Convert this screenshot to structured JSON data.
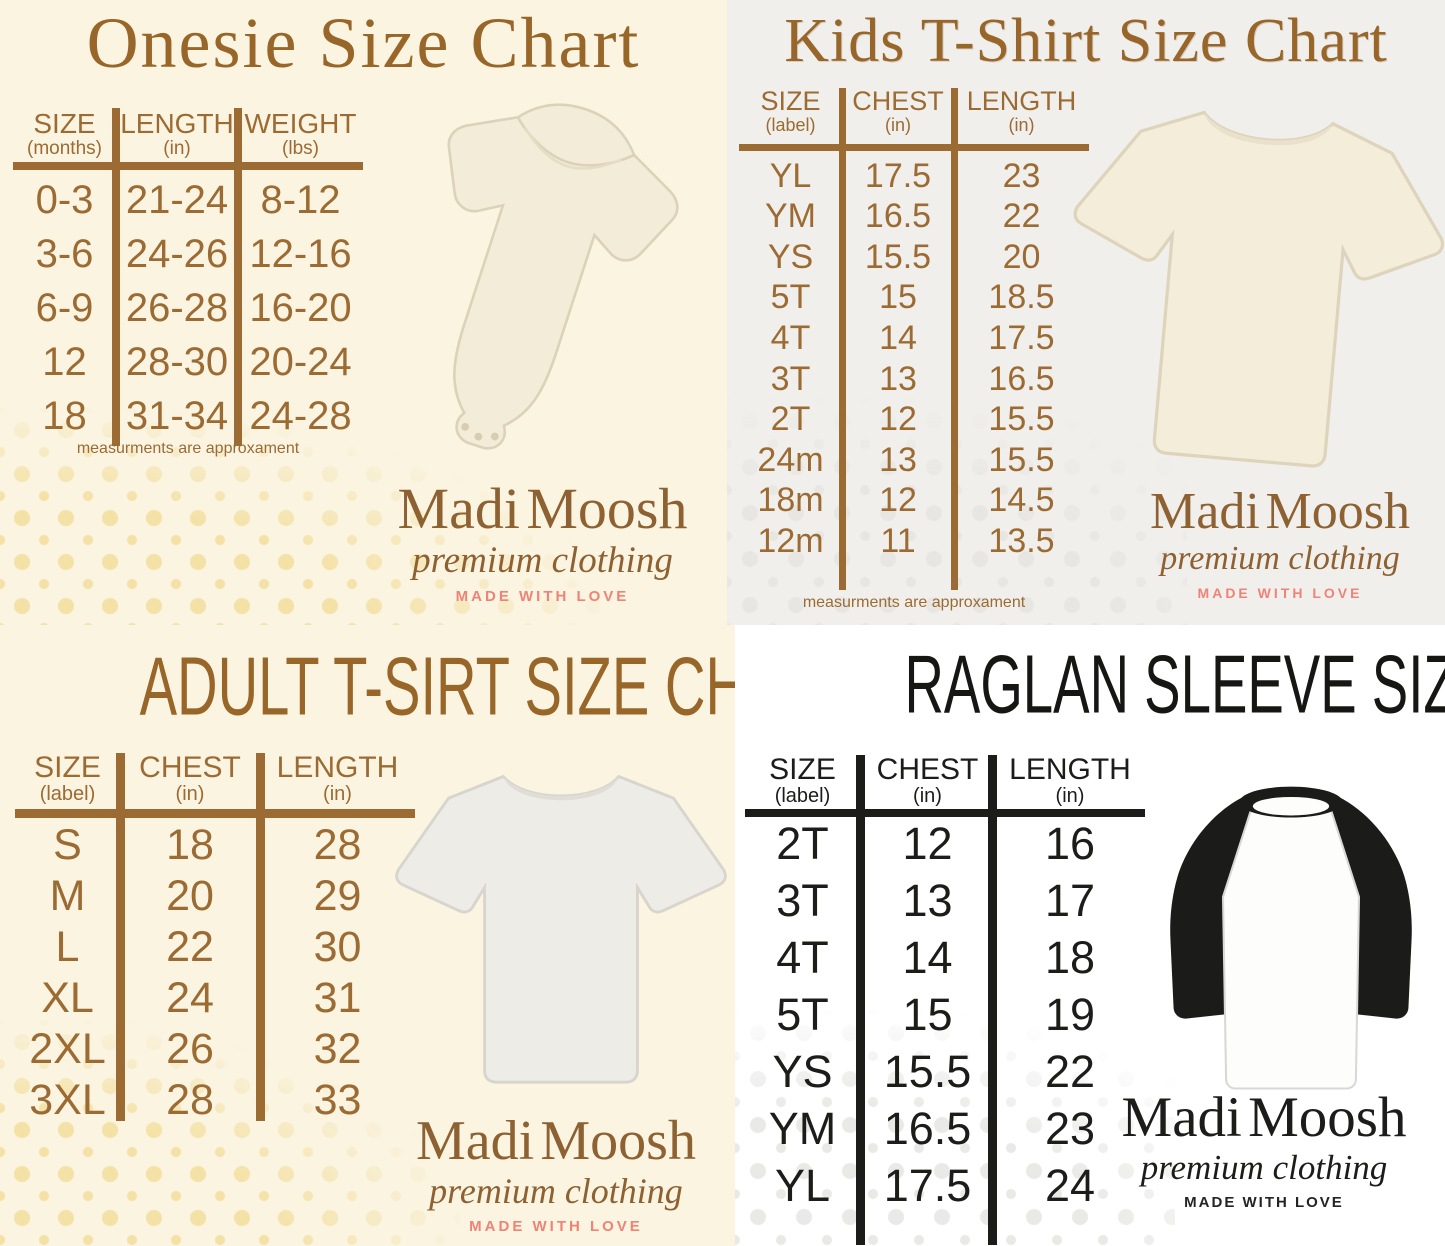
{
  "brand": {
    "name": "Madi Moosh",
    "tagline": "premium clothing",
    "motto": "MADE WITH LOVE"
  },
  "charts": {
    "onesie": {
      "title": "Onesie Size Chart",
      "note": "measurments are approxament",
      "columns": [
        {
          "label": "SIZE",
          "unit": "(months)"
        },
        {
          "label": "LENGTH",
          "unit": "(in)"
        },
        {
          "label": "WEIGHT",
          "unit": "(lbs)"
        }
      ],
      "rows": [
        [
          "0-3",
          "21-24",
          "8-12"
        ],
        [
          "3-6",
          "24-26",
          "12-16"
        ],
        [
          "6-9",
          "26-28",
          "16-20"
        ],
        [
          "12",
          "28-30",
          "20-24"
        ],
        [
          "18",
          "31-34",
          "24-28"
        ]
      ]
    },
    "kids": {
      "title": "Kids T-Shirt Size Chart",
      "note": "measurments are approxament",
      "columns": [
        {
          "label": "SIZE",
          "unit": "(label)"
        },
        {
          "label": "CHEST",
          "unit": "(in)"
        },
        {
          "label": "LENGTH",
          "unit": "(in)"
        }
      ],
      "rows": [
        [
          "YL",
          "17.5",
          "23"
        ],
        [
          "YM",
          "16.5",
          "22"
        ],
        [
          "YS",
          "15.5",
          "20"
        ],
        [
          "5T",
          "15",
          "18.5"
        ],
        [
          "4T",
          "14",
          "17.5"
        ],
        [
          "3T",
          "13",
          "16.5"
        ],
        [
          "2T",
          "12",
          "15.5"
        ],
        [
          "24m",
          "13",
          "15.5"
        ],
        [
          "18m",
          "12",
          "14.5"
        ],
        [
          "12m",
          "11",
          "13.5"
        ]
      ]
    },
    "adult": {
      "title": "ADULT T-SIRT SIZE CHART",
      "columns": [
        {
          "label": "SIZE",
          "unit": "(label)"
        },
        {
          "label": "CHEST",
          "unit": "(in)"
        },
        {
          "label": "LENGTH",
          "unit": "(in)"
        }
      ],
      "rows": [
        [
          "S",
          "18",
          "28"
        ],
        [
          "M",
          "20",
          "29"
        ],
        [
          "L",
          "22",
          "30"
        ],
        [
          "XL",
          "24",
          "31"
        ],
        [
          "2XL",
          "26",
          "32"
        ],
        [
          "3XL",
          "28",
          "33"
        ]
      ]
    },
    "raglan": {
      "title": "RAGLAN SLEEVE SIZE CHART",
      "columns": [
        {
          "label": "SIZE",
          "unit": "(label)"
        },
        {
          "label": "CHEST",
          "unit": "(in)"
        },
        {
          "label": "LENGTH",
          "unit": "(in)"
        }
      ],
      "rows": [
        [
          "2T",
          "12",
          "16"
        ],
        [
          "3T",
          "13",
          "17"
        ],
        [
          "4T",
          "14",
          "18"
        ],
        [
          "5T",
          "15",
          "19"
        ],
        [
          "YS",
          "15.5",
          "22"
        ],
        [
          "YM",
          "16.5",
          "23"
        ],
        [
          "YL",
          "17.5",
          "24"
        ]
      ]
    }
  },
  "colors": {
    "brown_text": "#9c6b33",
    "black_text": "#1c1c1a",
    "salmon_motto": "#ee8377",
    "cream_background": "#faf4e1",
    "gray_background": "#f1efec",
    "white_background": "#ffffff",
    "dot_yellow": "#f4e1a6",
    "dot_gray": "#e7e6e2"
  }
}
